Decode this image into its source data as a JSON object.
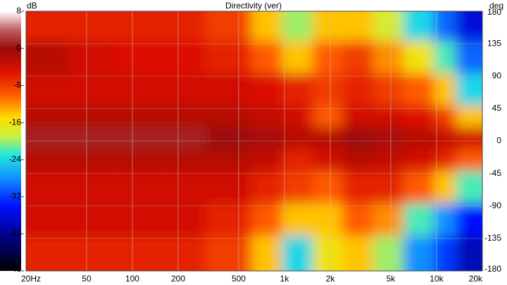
{
  "chart_data": {
    "type": "heatmap",
    "title": "Directivity (ver)",
    "colorbar_label": "dB",
    "ylabel": "deg",
    "xscale": "log",
    "xlim": [
      20,
      20000
    ],
    "xticks": [
      {
        "value": 20,
        "label": "20Hz"
      },
      50,
      100,
      200,
      500,
      {
        "value": 1000,
        "label": "1k"
      },
      {
        "value": 2000,
        "label": "2k"
      },
      {
        "value": 5000,
        "label": "5k"
      },
      {
        "value": 10000,
        "label": "10k"
      },
      {
        "value": 20000,
        "label": "20k"
      }
    ],
    "ylim": [
      -180,
      180
    ],
    "yticks": [
      180,
      135,
      90,
      45,
      0,
      -45,
      -90,
      -135,
      -180
    ],
    "zlim": [
      -48,
      8
    ],
    "zticks": [
      8,
      0,
      -8,
      -16,
      -24,
      -32,
      -40,
      -48
    ],
    "grid": true,
    "colormap": [
      [
        8,
        "#ffffff"
      ],
      [
        4,
        "#c06060"
      ],
      [
        0,
        "#9a0a0a"
      ],
      [
        -5,
        "#dd1100"
      ],
      [
        -10,
        "#ff5a00"
      ],
      [
        -15,
        "#ffdd00"
      ],
      [
        -19,
        "#c8f040"
      ],
      [
        -23,
        "#20e8e0"
      ],
      [
        -28,
        "#1090ff"
      ],
      [
        -34,
        "#0010ff"
      ],
      [
        -41,
        "#000080"
      ],
      [
        -48,
        "#000000"
      ]
    ],
    "x_edges": [
      20,
      40,
      80,
      160,
      315,
      630,
      1000,
      1600,
      2500,
      4000,
      6300,
      10000,
      14000,
      20000
    ],
    "y_edges": [
      180,
      135,
      90,
      45,
      15,
      -15,
      -45,
      -90,
      -135,
      -180
    ],
    "z": [
      [
        -6,
        -6,
        -6,
        -6,
        -8,
        -14,
        -20,
        -14,
        -14,
        -18,
        -24,
        -30,
        -36
      ],
      [
        -2,
        -4,
        -5,
        -5,
        -6,
        -10,
        -14,
        -10,
        -8,
        -12,
        -16,
        -22,
        -30
      ],
      [
        -4,
        -4,
        -4,
        -4,
        -4,
        -5,
        -6,
        -8,
        -6,
        -8,
        -10,
        -14,
        -24
      ],
      [
        -2,
        -2,
        -2,
        -2,
        -2,
        -3,
        -4,
        -10,
        -4,
        -4,
        -5,
        -8,
        -14
      ],
      [
        1,
        1,
        1,
        1,
        0,
        -1,
        -2,
        -2,
        0,
        -1,
        -2,
        -3,
        -4
      ],
      [
        -2,
        -2,
        -2,
        -2,
        -2,
        -3,
        -6,
        -4,
        -2,
        -3,
        -4,
        -6,
        -10
      ],
      [
        -4,
        -4,
        -4,
        -4,
        -4,
        -6,
        -8,
        -10,
        -6,
        -6,
        -10,
        -14,
        -22
      ],
      [
        -4,
        -4,
        -4,
        -4,
        -6,
        -10,
        -14,
        -14,
        -10,
        -12,
        -22,
        -28,
        -34
      ],
      [
        -6,
        -6,
        -6,
        -6,
        -8,
        -14,
        -24,
        -16,
        -14,
        -20,
        -28,
        -32,
        -38
      ]
    ]
  }
}
